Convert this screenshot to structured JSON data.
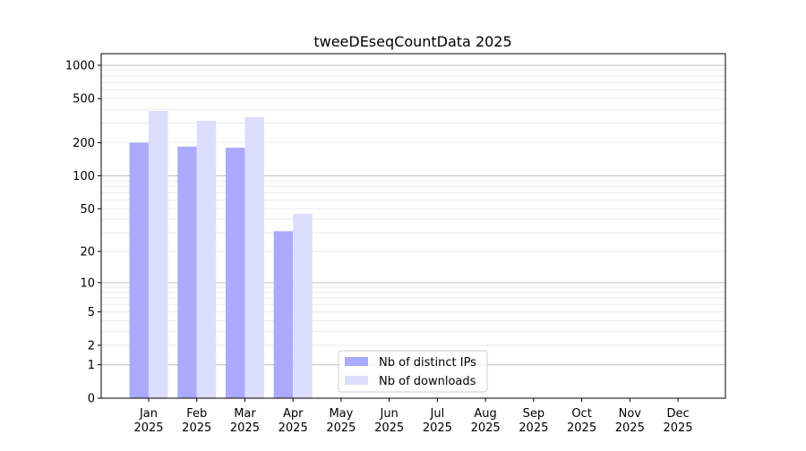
{
  "chart_data": {
    "type": "bar",
    "title": "tweeDEseqCountData 2025",
    "xlabel": "",
    "ylabel": "",
    "yscale": "log10(1+y)",
    "ylim": [
      0,
      1200
    ],
    "yticks": [
      0,
      1,
      2,
      5,
      10,
      20,
      50,
      100,
      200,
      500,
      1000
    ],
    "grid": true,
    "legend_position": "bottom-center",
    "categories": [
      [
        "Jan",
        "2025"
      ],
      [
        "Feb",
        "2025"
      ],
      [
        "Mar",
        "2025"
      ],
      [
        "Apr",
        "2025"
      ],
      [
        "May",
        "2025"
      ],
      [
        "Jun",
        "2025"
      ],
      [
        "Jul",
        "2025"
      ],
      [
        "Aug",
        "2025"
      ],
      [
        "Sep",
        "2025"
      ],
      [
        "Oct",
        "2025"
      ],
      [
        "Nov",
        "2025"
      ],
      [
        "Dec",
        "2025"
      ]
    ],
    "series": [
      {
        "name": "Nb of distinct IPs",
        "color": "#aaaaff",
        "values": [
          200,
          184,
          180,
          31,
          0,
          0,
          0,
          0,
          0,
          0,
          0,
          0
        ]
      },
      {
        "name": "Nb of downloads",
        "color": "#ddddff",
        "values": [
          387,
          315,
          340,
          45,
          0,
          0,
          0,
          0,
          0,
          0,
          0,
          0
        ]
      }
    ]
  }
}
